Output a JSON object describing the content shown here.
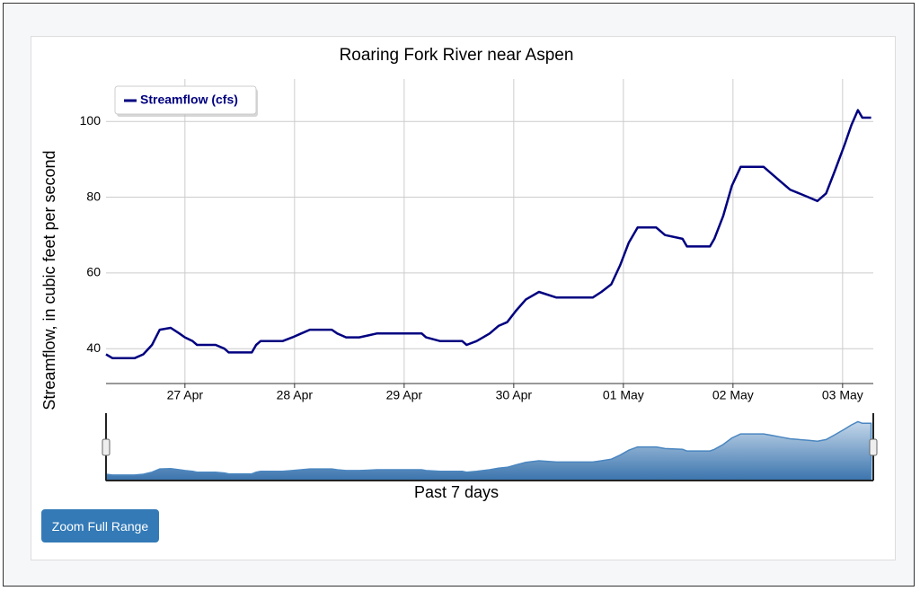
{
  "chart_data": {
    "type": "line",
    "title": "Roaring Fork River near Aspen",
    "y_label": "Streamflow, in cubic feet per second",
    "navigator_label": "Past 7 days",
    "button": "Zoom Full Range",
    "xlim": [
      0.28,
      7.28
    ],
    "xticks": [
      {
        "value": 1,
        "label": "27 Apr"
      },
      {
        "value": 2,
        "label": "28 Apr"
      },
      {
        "value": 3,
        "label": "29 Apr"
      },
      {
        "value": 4,
        "label": "30 Apr"
      },
      {
        "value": 5,
        "label": "01 May"
      },
      {
        "value": 6,
        "label": "02 May"
      },
      {
        "value": 7,
        "label": "03 May"
      }
    ],
    "ylim": [
      30.8,
      111.2
    ],
    "yticks": [
      40,
      60,
      80,
      100
    ],
    "grid": true,
    "legend": "upper-left",
    "x": [
      0.28,
      0.34,
      0.54,
      0.62,
      0.7,
      0.77,
      0.87,
      0.95,
      1.0,
      1.07,
      1.11,
      1.28,
      1.36,
      1.4,
      1.61,
      1.65,
      1.69,
      1.89,
      1.98,
      2.06,
      2.14,
      2.34,
      2.39,
      2.47,
      2.59,
      2.67,
      2.75,
      3.16,
      3.2,
      3.33,
      3.53,
      3.57,
      3.66,
      3.78,
      3.86,
      3.94,
      4.02,
      4.11,
      4.23,
      4.39,
      4.72,
      4.8,
      4.89,
      4.97,
      5.05,
      5.13,
      5.3,
      5.38,
      5.54,
      5.58,
      5.79,
      5.83,
      5.91,
      5.99,
      6.07,
      6.28,
      6.36,
      6.44,
      6.52,
      6.69,
      6.77,
      6.85,
      6.93,
      7.02,
      7.08,
      7.14,
      7.18,
      7.26
    ],
    "series": [
      {
        "name": "Streamflow (cfs)",
        "color": "#000080",
        "values": [
          38.5,
          37.5,
          37.5,
          38.5,
          41,
          45,
          45.5,
          44,
          43,
          42,
          41,
          41,
          40,
          39,
          39,
          41,
          42,
          42,
          43,
          44,
          45,
          45,
          44,
          43,
          43,
          43.5,
          44,
          44,
          43,
          42,
          42,
          41,
          42,
          44,
          46,
          47,
          50,
          53,
          55,
          53.5,
          53.5,
          55,
          57,
          62,
          68,
          72,
          72,
          70,
          69,
          67,
          67,
          69,
          75,
          83,
          88,
          88,
          86,
          84,
          82,
          80,
          79,
          81,
          87,
          94,
          99,
          103,
          101,
          101
        ]
      }
    ]
  }
}
